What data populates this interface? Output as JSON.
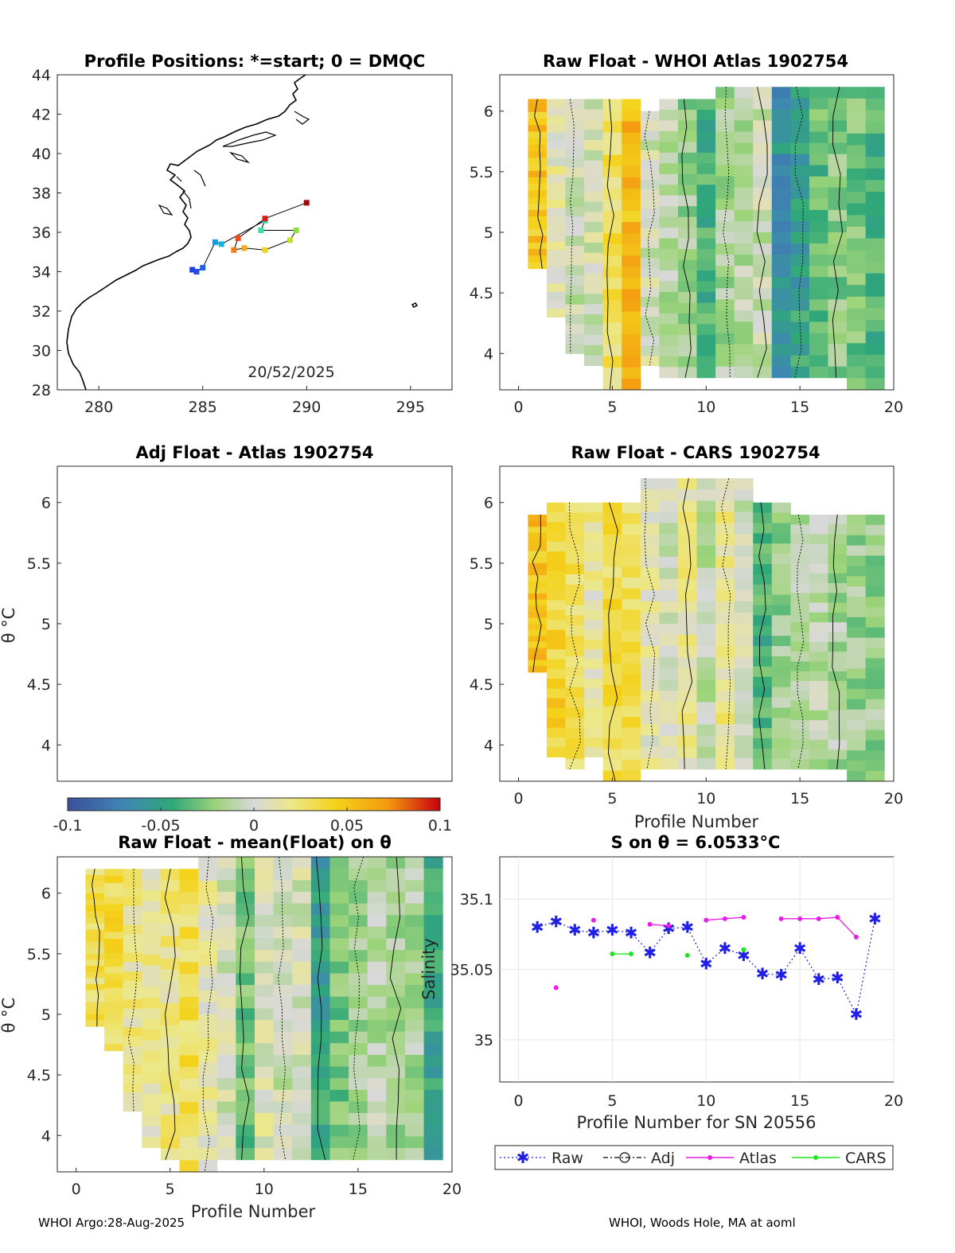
{
  "footer": {
    "left": "WHOI Argo:28-Aug-2025",
    "right": "WHOI, Woods Hole, MA at aoml"
  },
  "chart_data": [
    {
      "id": "map",
      "type": "scatter",
      "title": "Profile Positions: *=start; 0 = DMQC",
      "xlim": [
        278,
        297
      ],
      "ylim": [
        28,
        44
      ],
      "xticks": [
        280,
        285,
        290,
        295
      ],
      "yticks": [
        28,
        30,
        32,
        34,
        36,
        38,
        40,
        42,
        44
      ],
      "date_label": "20/52/2025",
      "track": [
        {
          "x": 284.5,
          "y": 34.1,
          "color": "#1f3fdc"
        },
        {
          "x": 284.7,
          "y": 34.0,
          "color": "#1f4fe6"
        },
        {
          "x": 285.0,
          "y": 34.2,
          "color": "#1f5fef"
        },
        {
          "x": 285.6,
          "y": 35.5,
          "color": "#0aa0e8"
        },
        {
          "x": 285.9,
          "y": 35.4,
          "color": "#12b6e0"
        },
        {
          "x": 288.0,
          "y": 36.6,
          "color": "#28d6c0"
        },
        {
          "x": 287.8,
          "y": 36.1,
          "color": "#3ee0a8"
        },
        {
          "x": 289.5,
          "y": 36.1,
          "color": "#8be03a"
        },
        {
          "x": 289.2,
          "y": 35.6,
          "color": "#c6e01f"
        },
        {
          "x": 288.0,
          "y": 35.1,
          "color": "#f0d020"
        },
        {
          "x": 287.0,
          "y": 35.2,
          "color": "#f5a818"
        },
        {
          "x": 286.5,
          "y": 35.1,
          "color": "#f08018"
        },
        {
          "x": 286.7,
          "y": 35.7,
          "color": "#f04a18"
        },
        {
          "x": 288.0,
          "y": 36.7,
          "color": "#d81e10"
        },
        {
          "x": 290.0,
          "y": 37.5,
          "color": "#9a0c08"
        }
      ]
    },
    {
      "id": "raw-atlas",
      "type": "heatmap",
      "title": "Raw Float - WHOI Atlas  1902754",
      "xlim": [
        -1,
        20
      ],
      "ylim": [
        3.7,
        6.3
      ],
      "xticks": [
        0,
        5,
        10,
        15,
        20
      ],
      "yticks": [
        4,
        4.5,
        5,
        5.5,
        6
      ],
      "xlabel": "",
      "ylabel": ""
    },
    {
      "id": "adj-atlas",
      "type": "heatmap",
      "title": "Adj Float - Atlas  1902754",
      "xlim": [
        -1,
        20
      ],
      "ylim": [
        3.7,
        6.3
      ],
      "xticks": [],
      "yticks": [
        4,
        4.5,
        5,
        5.5,
        6
      ],
      "xlabel": "",
      "ylabel": "θ °C"
    },
    {
      "id": "raw-cars",
      "type": "heatmap",
      "title": "Raw Float - CARS  1902754",
      "xlim": [
        -1,
        20
      ],
      "ylim": [
        3.7,
        6.3
      ],
      "xticks": [
        0,
        5,
        10,
        15,
        20
      ],
      "yticks": [
        4,
        4.5,
        5,
        5.5,
        6
      ],
      "xlabel": "Profile Number",
      "ylabel": ""
    },
    {
      "id": "colorbar",
      "type": "heatmap",
      "range": [
        -0.1,
        0.1
      ],
      "ticks": [
        "-0.1",
        "-0.05",
        "0",
        "0.05",
        "0.1"
      ]
    },
    {
      "id": "raw-mean",
      "type": "heatmap",
      "title": "Raw Float - mean(Float) on θ",
      "xlim": [
        -1,
        20
      ],
      "ylim": [
        3.7,
        6.3
      ],
      "xticks": [
        0,
        5,
        10,
        15,
        20
      ],
      "yticks": [
        4,
        4.5,
        5,
        5.5,
        6
      ],
      "xlabel": "Profile Number",
      "ylabel": "θ °C"
    },
    {
      "id": "salinity",
      "type": "line",
      "title": "S on θ = 6.0533°C",
      "xlim": [
        -1,
        20
      ],
      "ylim": [
        34.97,
        35.13
      ],
      "xticks": [
        0,
        5,
        10,
        15,
        20
      ],
      "yticks": [
        35,
        35.05,
        35.1
      ],
      "xlabel": "Profile Number for SN 20556",
      "ylabel": "Salinity",
      "legend": [
        "Raw",
        "Adj",
        "Atlas",
        "CARS"
      ],
      "series": [
        {
          "name": "Raw",
          "color": "#1f1fe6",
          "x": [
            1,
            2,
            3,
            4,
            5,
            6,
            7,
            8,
            9,
            10,
            11,
            12,
            13,
            14,
            15,
            16,
            17,
            18,
            19
          ],
          "y": [
            35.08,
            35.084,
            35.078,
            35.076,
            35.078,
            35.076,
            35.062,
            35.079,
            35.08,
            35.054,
            35.065,
            35.06,
            35.047,
            35.046,
            35.065,
            35.043,
            35.044,
            35.018,
            35.086
          ]
        },
        {
          "name": "Atlas",
          "color": "#e61ee6",
          "x": [
            2,
            4,
            7,
            8,
            10,
            11,
            12,
            14,
            15,
            16,
            17,
            18
          ],
          "y": [
            35.037,
            35.085,
            35.082,
            35.081,
            35.085,
            35.086,
            35.087,
            35.086,
            35.086,
            35.086,
            35.087,
            35.073
          ]
        },
        {
          "name": "CARS",
          "color": "#1ee61e",
          "x": [
            5,
            6,
            9,
            12
          ],
          "y": [
            35.061,
            35.061,
            35.06,
            35.064
          ]
        }
      ]
    }
  ]
}
